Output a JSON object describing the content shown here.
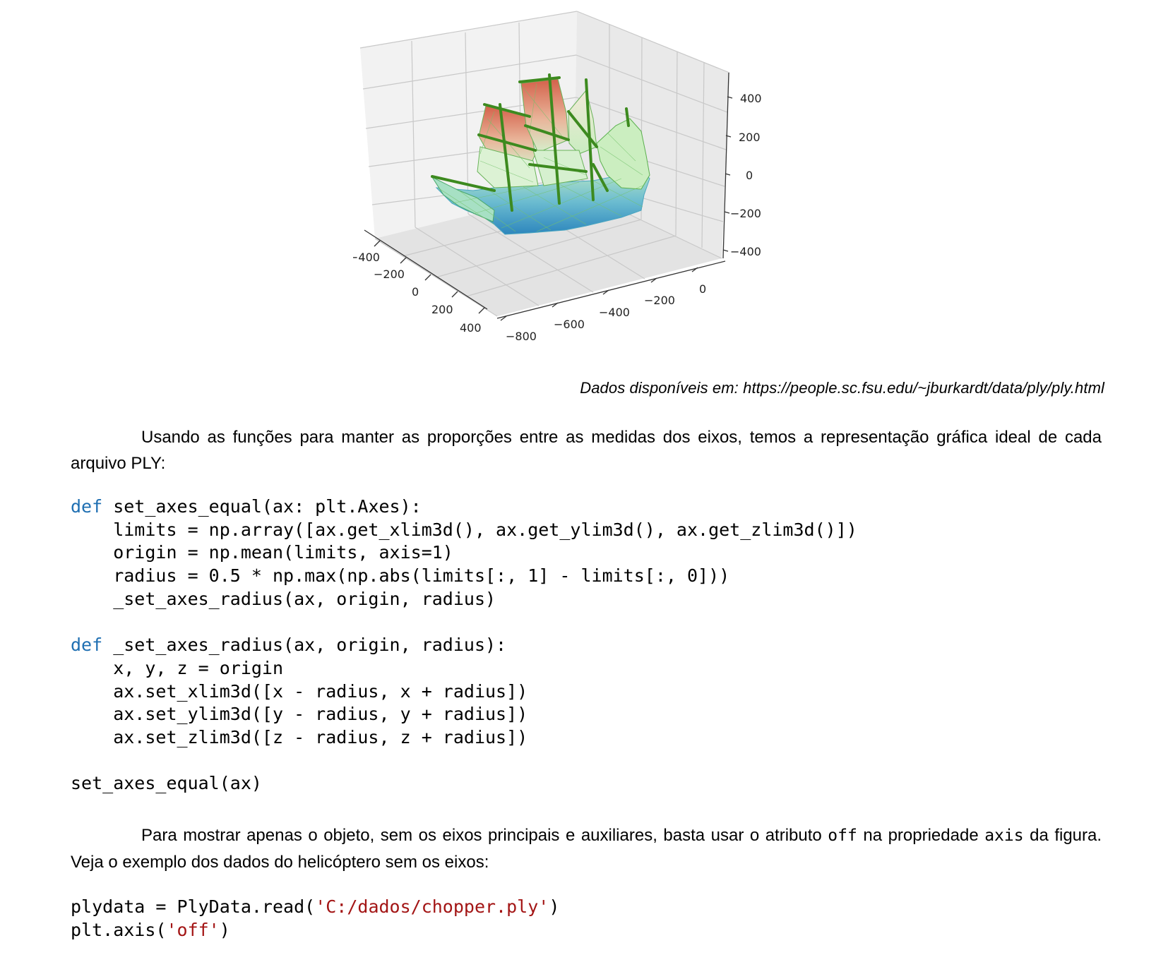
{
  "figure": {
    "x_ticks": [
      "−400",
      "−200",
      "0",
      "200",
      "400"
    ],
    "y_ticks": [
      "−800",
      "−600",
      "−400",
      "−200",
      "0"
    ],
    "z_ticks": [
      "400",
      "200",
      "0",
      "−200",
      "−400"
    ],
    "colors": {
      "sails": "#d4614a",
      "hull": "#3d93c4",
      "masts": "#3d8a1f",
      "wire": "#8fd07a"
    }
  },
  "caption": "Dados disponíveis em: https://people.sc.fsu.edu/~jburkardt/data/ply/ply.html",
  "paragraph1": "Usando as funções para manter as proporções entre as medidas dos eixos, temos a representação gráfica ideal de cada arquivo PLY:",
  "code1": {
    "kw": "def",
    "l1": " set_axes_equal(ax: plt.Axes):",
    "l2": "    limits = np.array([ax.get_xlim3d(), ax.get_ylim3d(), ax.get_zlim3d()])",
    "l3": "    origin = np.mean(limits, axis=1)",
    "l4": "    radius = 0.5 * np.max(np.abs(limits[:, 1] - limits[:, 0]))",
    "l5": "    _set_axes_radius(ax, origin, radius)",
    "l7": " _set_axes_radius(ax, origin, radius):",
    "l8": "    x, y, z = origin",
    "l9": "    ax.set_xlim3d([x - radius, x + radius])",
    "l10": "    ax.set_ylim3d([y - radius, y + radius])",
    "l11": "    ax.set_zlim3d([z - radius, z + radius])",
    "l13": "set_axes_equal(ax)"
  },
  "paragraph2": {
    "a": "Para mostrar apenas o objeto, sem os eixos principais e auxiliares, basta usar o atributo ",
    "code_off": "off",
    "b": " na propriedade ",
    "code_axis": "axis",
    "c": " da figura. Veja o exemplo dos dados do helicóptero sem os eixos:"
  },
  "code2": {
    "l1a": "plydata = PlyData.read(",
    "l1s": "'C:/dados/chopper.ply'",
    "l1b": ")",
    "l2a": "plt.axis(",
    "l2s": "'off'",
    "l2b": ")"
  }
}
